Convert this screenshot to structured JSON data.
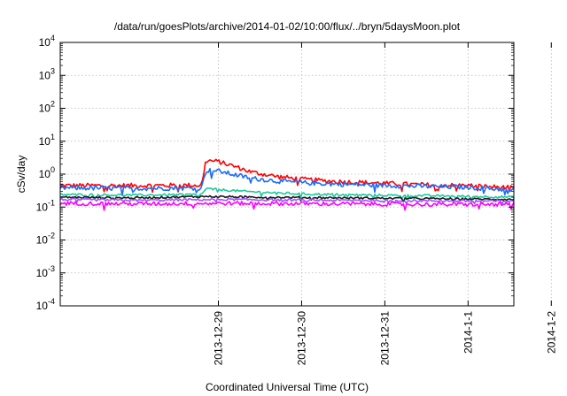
{
  "chart_data": {
    "type": "line",
    "title": "/data/run/goesPlots/archive/2014-01-02/10:00/flux/../bryn/5daysMoon.plot",
    "xlabel": "Coordinated Universal Time (UTC)",
    "ylabel": "cSv/day",
    "yscale": "log",
    "ylim_exponents": [
      -4,
      4
    ],
    "xlim_days": [
      -1.9,
      3.55
    ],
    "x_unit": "days since 2013-12-29 00:00 UTC",
    "grid": true,
    "legend": "none",
    "xticks": [
      {
        "pos": 0,
        "label": "2013-12-29"
      },
      {
        "pos": 1,
        "label": "2013-12-30"
      },
      {
        "pos": 2,
        "label": "2013-12-31"
      },
      {
        "pos": 3,
        "label": "2014-1-1"
      },
      {
        "pos": 4,
        "label": "2014-1-2"
      }
    ],
    "series": [
      {
        "color": "#ff0000",
        "noise": 0.07,
        "points": [
          [
            -1.9,
            0.45
          ],
          [
            -1.0,
            0.45
          ],
          [
            -0.2,
            0.46
          ],
          [
            -0.15,
            2.6
          ],
          [
            0.0,
            2.4
          ],
          [
            0.2,
            1.7
          ],
          [
            0.4,
            1.15
          ],
          [
            0.7,
            0.85
          ],
          [
            1.0,
            0.7
          ],
          [
            1.4,
            0.6
          ],
          [
            1.8,
            0.55
          ],
          [
            2.2,
            0.5
          ],
          [
            2.6,
            0.46
          ],
          [
            3.0,
            0.45
          ],
          [
            3.55,
            0.38
          ]
        ]
      },
      {
        "color": "#1a6cff",
        "noise": 0.07,
        "points": [
          [
            -1.9,
            0.38
          ],
          [
            -1.0,
            0.37
          ],
          [
            -0.2,
            0.38
          ],
          [
            -0.15,
            1.3
          ],
          [
            0.0,
            1.25
          ],
          [
            0.2,
            0.95
          ],
          [
            0.4,
            0.75
          ],
          [
            0.7,
            0.62
          ],
          [
            1.0,
            0.55
          ],
          [
            1.4,
            0.5
          ],
          [
            1.8,
            0.47
          ],
          [
            2.2,
            0.44
          ],
          [
            2.6,
            0.42
          ],
          [
            3.0,
            0.4
          ],
          [
            3.55,
            0.33
          ]
        ]
      },
      {
        "color": "#1fc89a",
        "noise": 0.035,
        "points": [
          [
            -1.9,
            0.24
          ],
          [
            -1.0,
            0.23
          ],
          [
            -0.2,
            0.24
          ],
          [
            -0.15,
            0.36
          ],
          [
            0.3,
            0.3
          ],
          [
            1.0,
            0.25
          ],
          [
            1.8,
            0.23
          ],
          [
            2.6,
            0.22
          ],
          [
            3.55,
            0.2
          ]
        ]
      },
      {
        "color": "#1a1a1a",
        "noise": 0.03,
        "points": [
          [
            -1.9,
            0.2
          ],
          [
            -1.0,
            0.19
          ],
          [
            -0.15,
            0.21
          ],
          [
            0.5,
            0.2
          ],
          [
            1.5,
            0.19
          ],
          [
            2.6,
            0.18
          ],
          [
            3.55,
            0.17
          ]
        ]
      },
      {
        "color": "#a050ff",
        "noise": 0.035,
        "points": [
          [
            -1.9,
            0.17
          ],
          [
            -1.0,
            0.16
          ],
          [
            0.0,
            0.17
          ],
          [
            1.5,
            0.16
          ],
          [
            2.6,
            0.155
          ],
          [
            3.55,
            0.15
          ]
        ]
      },
      {
        "color": "#ff00ff",
        "noise": 0.06,
        "points": [
          [
            -1.9,
            0.13
          ],
          [
            -1.0,
            0.125
          ],
          [
            0.0,
            0.13
          ],
          [
            1.5,
            0.125
          ],
          [
            2.6,
            0.12
          ],
          [
            3.55,
            0.12
          ]
        ]
      }
    ]
  }
}
